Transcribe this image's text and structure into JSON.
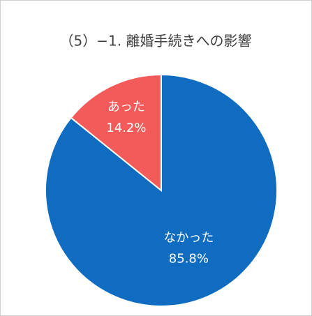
{
  "chart_data": {
    "type": "pie",
    "title": "（5）−1. 離婚手続きへの影響",
    "categories": [
      "なかった",
      "あった"
    ],
    "values": [
      85.8,
      14.2
    ],
    "value_labels": [
      "85.8%",
      "14.2%"
    ],
    "colors": [
      "#0f6cc0",
      "#f35a5a"
    ]
  }
}
